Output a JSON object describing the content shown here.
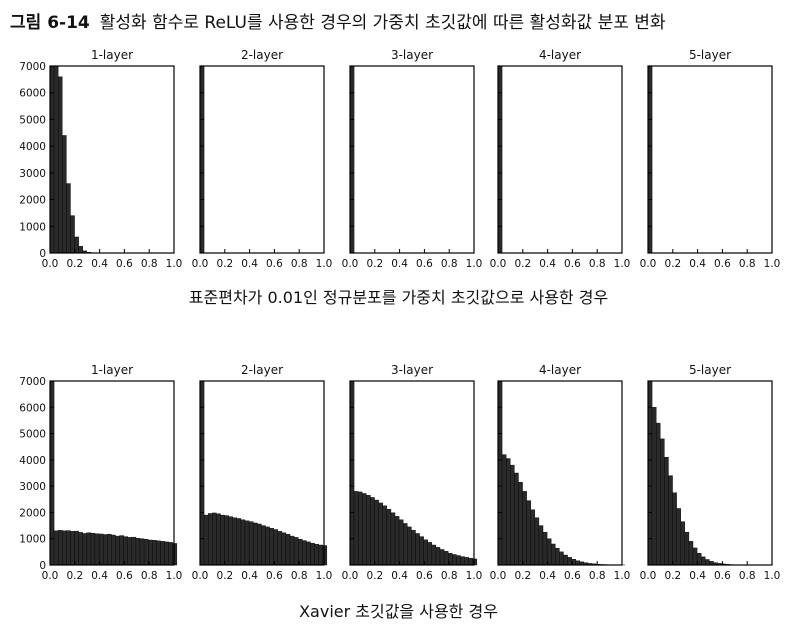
{
  "figure": {
    "label": "그림 6-14",
    "title": "활성화 함수로 ReLU를 사용한 경우의 가중치 초깃값에 따른 활성화값 분포 변화"
  },
  "captions": {
    "top": "표준편차가 0.01인 정규분포를 가중치 초깃값으로 사용한 경우",
    "bottom": "Xavier 초깃값을 사용한 경우"
  },
  "colors": {
    "bar": "#2a2a2a",
    "frame": "#000000",
    "background": "#ffffff"
  },
  "chart_data": [
    {
      "type": "bar",
      "row": "std-0.01",
      "title": "1-layer",
      "xlim": [
        0,
        1
      ],
      "ylim": [
        0,
        7000
      ],
      "xticks": [
        "0.0",
        "0.2",
        "0.4",
        "0.6",
        "0.8",
        "1.0"
      ],
      "yticks": [
        "0",
        "1000",
        "2000",
        "3000",
        "4000",
        "5000",
        "6000",
        "7000"
      ],
      "bin_width": 0.033,
      "values": [
        7000,
        7000,
        6600,
        4400,
        2600,
        1400,
        600,
        250,
        80,
        30
      ]
    },
    {
      "type": "bar",
      "row": "std-0.01",
      "title": "2-layer",
      "xlim": [
        0,
        1
      ],
      "ylim": [
        0,
        7000
      ],
      "xticks": [
        "0.0",
        "0.2",
        "0.4",
        "0.6",
        "0.8",
        "1.0"
      ],
      "bin_width": 0.033,
      "values": [
        7000
      ]
    },
    {
      "type": "bar",
      "row": "std-0.01",
      "title": "3-layer",
      "xlim": [
        0,
        1
      ],
      "ylim": [
        0,
        7000
      ],
      "xticks": [
        "0.0",
        "0.2",
        "0.4",
        "0.6",
        "0.8",
        "1.0"
      ],
      "bin_width": 0.033,
      "values": [
        7000
      ]
    },
    {
      "type": "bar",
      "row": "std-0.01",
      "title": "4-layer",
      "xlim": [
        0,
        1
      ],
      "ylim": [
        0,
        7000
      ],
      "xticks": [
        "0.0",
        "0.2",
        "0.4",
        "0.6",
        "0.8",
        "1.0"
      ],
      "bin_width": 0.033,
      "values": [
        7000
      ]
    },
    {
      "type": "bar",
      "row": "std-0.01",
      "title": "5-layer",
      "xlim": [
        0,
        1
      ],
      "ylim": [
        0,
        7000
      ],
      "xticks": [
        "0.0",
        "0.2",
        "0.4",
        "0.6",
        "0.8",
        "1.0"
      ],
      "bin_width": 0.033,
      "values": [
        7000
      ]
    },
    {
      "type": "bar",
      "row": "xavier",
      "title": "1-layer",
      "xlim": [
        0,
        1
      ],
      "ylim": [
        0,
        7000
      ],
      "xticks": [
        "0.0",
        "0.2",
        "0.4",
        "0.6",
        "0.8",
        "1.0"
      ],
      "yticks": [
        "0",
        "1000",
        "2000",
        "3000",
        "4000",
        "5000",
        "6000",
        "7000"
      ],
      "bin_width": 0.033,
      "values": [
        7000,
        1300,
        1320,
        1300,
        1310,
        1280,
        1290,
        1240,
        1200,
        1230,
        1210,
        1190,
        1180,
        1160,
        1170,
        1140,
        1100,
        1120,
        1080,
        1050,
        1060,
        1020,
        1000,
        980,
        950,
        940,
        920,
        900,
        880,
        860,
        820
      ]
    },
    {
      "type": "bar",
      "row": "xavier",
      "title": "2-layer",
      "xlim": [
        0,
        1
      ],
      "ylim": [
        0,
        7000
      ],
      "xticks": [
        "0.0",
        "0.2",
        "0.4",
        "0.6",
        "0.8",
        "1.0"
      ],
      "bin_width": 0.033,
      "values": [
        7000,
        1900,
        1960,
        1980,
        1950,
        1900,
        1880,
        1840,
        1800,
        1770,
        1720,
        1680,
        1650,
        1600,
        1560,
        1500,
        1450,
        1400,
        1350,
        1280,
        1230,
        1170,
        1100,
        1050,
        980,
        930,
        880,
        830,
        790,
        760,
        740
      ]
    },
    {
      "type": "bar",
      "row": "xavier",
      "title": "3-layer",
      "xlim": [
        0,
        1
      ],
      "ylim": [
        0,
        7000
      ],
      "xticks": [
        "0.0",
        "0.2",
        "0.4",
        "0.6",
        "0.8",
        "1.0"
      ],
      "bin_width": 0.033,
      "values": [
        7000,
        2800,
        2780,
        2720,
        2650,
        2570,
        2470,
        2360,
        2250,
        2120,
        1990,
        1850,
        1720,
        1580,
        1450,
        1320,
        1200,
        1080,
        960,
        860,
        760,
        670,
        590,
        520,
        450,
        400,
        360,
        320,
        290,
        260,
        230
      ]
    },
    {
      "type": "bar",
      "row": "xavier",
      "title": "4-layer",
      "xlim": [
        0,
        1
      ],
      "ylim": [
        0,
        7000
      ],
      "xticks": [
        "0.0",
        "0.2",
        "0.4",
        "0.6",
        "0.8",
        "1.0"
      ],
      "bin_width": 0.033,
      "values": [
        7000,
        4200,
        4050,
        3800,
        3500,
        3150,
        2800,
        2450,
        2100,
        1800,
        1500,
        1250,
        1000,
        800,
        640,
        500,
        380,
        290,
        220,
        160,
        120,
        85,
        60,
        45,
        30,
        20,
        15,
        10,
        8,
        5,
        3
      ]
    },
    {
      "type": "bar",
      "row": "xavier",
      "title": "5-layer",
      "xlim": [
        0,
        1
      ],
      "ylim": [
        0,
        7000
      ],
      "xticks": [
        "0.0",
        "0.2",
        "0.4",
        "0.6",
        "0.8",
        "1.0"
      ],
      "bin_width": 0.033,
      "values": [
        7000,
        6000,
        5400,
        4800,
        4100,
        3400,
        2750,
        2150,
        1650,
        1250,
        900,
        650,
        450,
        310,
        210,
        140,
        90,
        60,
        40,
        25,
        15,
        10,
        6,
        4,
        2,
        1,
        0,
        0,
        0,
        0,
        0
      ]
    }
  ]
}
